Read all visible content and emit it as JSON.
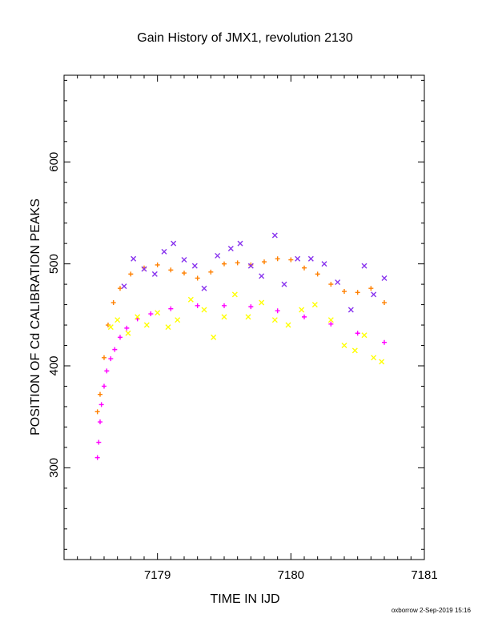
{
  "chart_data": {
    "type": "scatter",
    "title": "Gain History of JMX1, revolution 2130",
    "xlabel": "TIME IN IJD",
    "ylabel": "POSITION OF Cd CALIBRATION PEAKS",
    "xlim": [
      7178.3,
      7181.0
    ],
    "ylim": [
      210,
      685
    ],
    "x_ticks": [
      7179,
      7180,
      7181
    ],
    "y_ticks": [
      300,
      400,
      500,
      600
    ],
    "grid": false,
    "legend": "none",
    "series": [
      {
        "color": "#ff00ff",
        "marker": "plus",
        "x": [
          7178.55,
          7178.56,
          7178.57,
          7178.58,
          7178.6,
          7178.62,
          7178.65,
          7178.68,
          7178.72,
          7178.77,
          7178.85,
          7178.95,
          7179.1,
          7179.3,
          7179.5,
          7179.7,
          7179.9,
          7180.1,
          7180.3,
          7180.5,
          7180.7
        ],
        "y": [
          310,
          325,
          345,
          362,
          380,
          395,
          407,
          416,
          428,
          437,
          446,
          451,
          456,
          459,
          459,
          458,
          454,
          448,
          441,
          432,
          423
        ]
      },
      {
        "color": "#ff8000",
        "marker": "plus",
        "x": [
          7178.55,
          7178.57,
          7178.6,
          7178.63,
          7178.67,
          7178.72,
          7178.8,
          7178.9,
          7179.0,
          7179.1,
          7179.2,
          7179.3,
          7179.4,
          7179.5,
          7179.6,
          7179.7,
          7179.8,
          7179.9,
          7180.0,
          7180.1,
          7180.2,
          7180.3,
          7180.4,
          7180.5,
          7180.6,
          7180.7
        ],
        "y": [
          355,
          372,
          408,
          440,
          462,
          476,
          490,
          496,
          499,
          494,
          491,
          486,
          492,
          500,
          501,
          499,
          502,
          505,
          504,
          496,
          490,
          480,
          473,
          472,
          476,
          462
        ]
      },
      {
        "color": "#8833ee",
        "marker": "x",
        "x": [
          7178.75,
          7178.82,
          7178.9,
          7178.98,
          7179.05,
          7179.12,
          7179.2,
          7179.28,
          7179.35,
          7179.45,
          7179.55,
          7179.62,
          7179.7,
          7179.78,
          7179.88,
          7179.95,
          7180.05,
          7180.15,
          7180.25,
          7180.35,
          7180.45,
          7180.55,
          7180.62,
          7180.7
        ],
        "y": [
          478,
          505,
          495,
          490,
          512,
          520,
          504,
          498,
          476,
          508,
          515,
          520,
          498,
          488,
          528,
          480,
          505,
          505,
          500,
          482,
          455,
          498,
          470,
          486
        ]
      },
      {
        "color": "#ffff00",
        "marker": "x",
        "x": [
          7178.65,
          7178.7,
          7178.78,
          7178.85,
          7178.92,
          7179.0,
          7179.08,
          7179.15,
          7179.25,
          7179.35,
          7179.42,
          7179.5,
          7179.58,
          7179.68,
          7179.78,
          7179.88,
          7179.98,
          7180.08,
          7180.18,
          7180.3,
          7180.4,
          7180.48,
          7180.55,
          7180.62,
          7180.68
        ],
        "y": [
          438,
          445,
          432,
          448,
          440,
          452,
          438,
          445,
          465,
          455,
          428,
          448,
          470,
          448,
          462,
          445,
          440,
          455,
          460,
          445,
          420,
          415,
          430,
          408,
          404
        ]
      }
    ]
  },
  "footer": {
    "credit": "oxborrow  2-Sep-2019 15:16"
  }
}
